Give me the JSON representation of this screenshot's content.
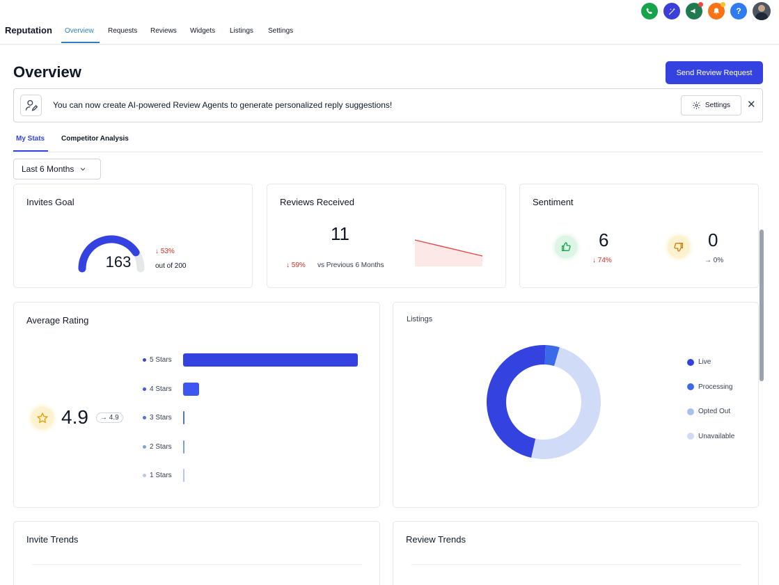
{
  "nav": {
    "app_title": "Reputation",
    "tabs": [
      {
        "label": "Overview"
      },
      {
        "label": "Requests"
      },
      {
        "label": "Reviews"
      },
      {
        "label": "Widgets"
      },
      {
        "label": "Listings"
      },
      {
        "label": "Settings"
      }
    ]
  },
  "top_icons": {
    "colors": {
      "phone": "#16a34a",
      "magic": "#3b3fd8",
      "megaphone": "#1f7a4f",
      "bell": "#f97316",
      "help": "#2f7cf0"
    },
    "help_label": "?"
  },
  "page": {
    "title": "Overview",
    "primary_button": "Send Review Request"
  },
  "banner": {
    "text": "You can now create AI-powered Review Agents to generate personalized reply suggestions!",
    "settings_label": "Settings",
    "close_label": "✕"
  },
  "subtabs": [
    {
      "label": "My Stats"
    },
    {
      "label": "Competitor Analysis"
    }
  ],
  "range_select": {
    "value": "Last 6 Months"
  },
  "invites_goal": {
    "title": "Invites Goal",
    "value": "163",
    "goal": 200,
    "delta": "↓ 53%",
    "out_of": "out of 200"
  },
  "reviews_received": {
    "title": "Reviews Received",
    "value": "11",
    "delta": "↓ 59%",
    "compare": "vs Previous 6 Months"
  },
  "sentiment": {
    "title": "Sentiment",
    "positive": {
      "value": "6",
      "delta": "↓ 74%"
    },
    "negative": {
      "value": "0",
      "delta": "→ 0%"
    }
  },
  "average_rating": {
    "title": "Average Rating",
    "value": "4.9",
    "badge": "→ 4.9",
    "chart_data": {
      "type": "bar",
      "categories": [
        "5 Stars",
        "4 Stars",
        "3 Stars",
        "2 Stars",
        "1 Stars"
      ],
      "values": [
        100,
        9,
        0.4,
        0.4,
        0.4
      ],
      "colors": [
        "#3443e0",
        "#3d56f0",
        "#4f72e8",
        "#7d9ee8",
        "#b5c8f0"
      ]
    }
  },
  "listings": {
    "title": "Listings",
    "chart_data": {
      "type": "pie",
      "categories": [
        "Live",
        "Processing",
        "Opted Out",
        "Unavailable"
      ],
      "values": [
        47,
        4,
        0,
        49
      ],
      "colors": [
        "#3443e0",
        "#3a6ae8",
        "#a7bff1",
        "#d0dcf7"
      ]
    }
  },
  "invite_trends": {
    "title": "Invite Trends"
  },
  "review_trends": {
    "title": "Review Trends"
  }
}
